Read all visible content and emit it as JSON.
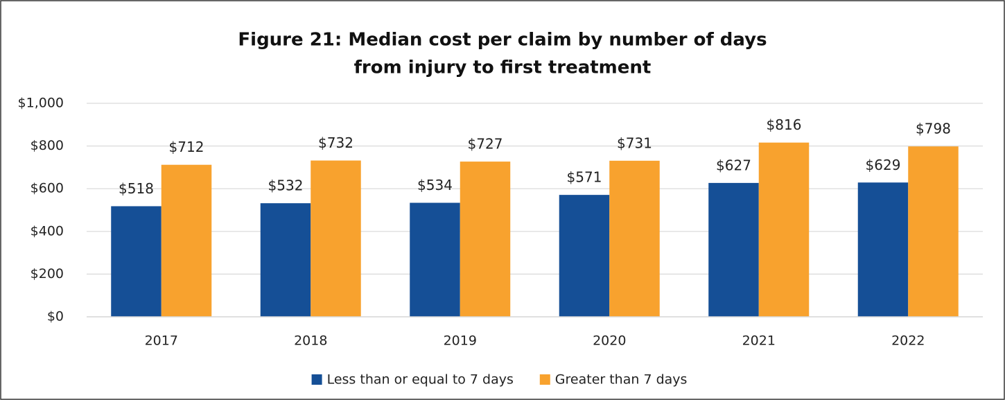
{
  "chart_data": {
    "type": "bar",
    "title": [
      "Figure 21: Median cost per claim by number of days",
      "from injury to first treatment"
    ],
    "categories": [
      "2017",
      "2018",
      "2019",
      "2020",
      "2021",
      "2022"
    ],
    "series": [
      {
        "name": "Less than or equal to 7 days",
        "color": "#154f96",
        "values": [
          518,
          532,
          534,
          571,
          627,
          629
        ],
        "value_labels": [
          "$518",
          "$532",
          "$534",
          "$571",
          "$627",
          "$629"
        ]
      },
      {
        "name": "Greater than 7 days",
        "color": "#f8a22e",
        "values": [
          712,
          732,
          727,
          731,
          816,
          798
        ],
        "value_labels": [
          "$712",
          "$732",
          "$727",
          "$731",
          "$816",
          "$798"
        ]
      }
    ],
    "ylim": [
      0,
      1000
    ],
    "yticks": [
      {
        "value": 0,
        "label": "$0"
      },
      {
        "value": 200,
        "label": "$200"
      },
      {
        "value": 400,
        "label": "$400"
      },
      {
        "value": 600,
        "label": "$600"
      },
      {
        "value": 800,
        "label": "$800"
      },
      {
        "value": 1000,
        "label": "$1,000"
      }
    ],
    "grid": true,
    "legend": "bottom"
  }
}
